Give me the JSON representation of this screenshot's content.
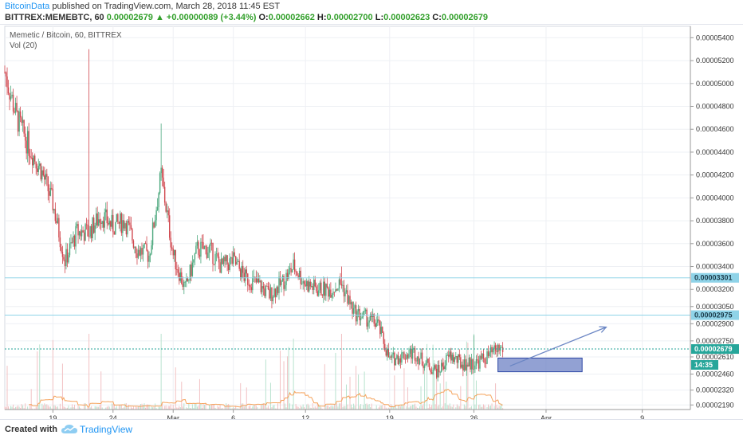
{
  "header": {
    "publisher": "BitcoinData",
    "published_text": "published on TradingView.com, March 28, 2018 11:45 EST",
    "symbol": "BITTREX:MEMEBTC, 60",
    "last": "0.00002679",
    "change": "+0.00000089 (+3.44%)",
    "o_label": "O:",
    "o": "0.00002662",
    "h_label": "H:",
    "h": "0.00002700",
    "l_label": "L:",
    "l": "0.00002623",
    "c_label": "C:",
    "c": "0.00002679"
  },
  "legend": {
    "title": "Memetic / Bitcoin, 60, BITTREX",
    "volume": "Vol (20)"
  },
  "footer": {
    "created_with": "Created with",
    "brand": "TradingView"
  },
  "colors": {
    "up": "#4ca87d",
    "down": "#d0484f",
    "level_line": "#8fd3e8",
    "current_line": "#26a69a",
    "box_fill": "#6d82c4",
    "arrow": "#6b86c4"
  },
  "chart_data": {
    "type": "candlestick",
    "x_labels": [
      "19",
      "24",
      "Mar",
      "6",
      "12",
      "19",
      "26",
      "Apr",
      "9"
    ],
    "x_start_date": "2018-02-15",
    "y_ticks": [
      "0.00005400",
      "0.00005200",
      "0.00005000",
      "0.00004800",
      "0.00004600",
      "0.00004400",
      "0.00004200",
      "0.00004000",
      "0.00003800",
      "0.00003600",
      "0.00003400",
      "0.00003200",
      "0.00003050",
      "0.00002900",
      "0.00002750",
      "0.00002610",
      "0.00002460",
      "0.00002320",
      "0.00002190"
    ],
    "price_tags": [
      {
        "label": "0.00003301",
        "value": 3.301e-05,
        "style": "level"
      },
      {
        "label": "0.00002975",
        "value": 2.975e-05,
        "style": "level"
      },
      {
        "label": "0.00002679",
        "value": 2.679e-05,
        "style": "current"
      },
      {
        "label": "14:35",
        "value": 2.54e-05,
        "style": "countdown"
      }
    ],
    "price_path": [
      [
        "2018-02-15",
        5.1e-05
      ],
      [
        "2018-02-16",
        4.7e-05
      ],
      [
        "2018-02-17",
        4.45e-05
      ],
      [
        "2018-02-18",
        4.25e-05
      ],
      [
        "2018-02-19",
        3.95e-05
      ],
      [
        "2018-02-20",
        3.45e-05
      ],
      [
        "2018-02-21",
        3.7e-05
      ],
      [
        "2018-02-22",
        3.7e-05
      ],
      [
        "2018-02-23",
        3.85e-05
      ],
      [
        "2018-02-24",
        3.75e-05
      ],
      [
        "2018-02-25",
        3.8e-05
      ],
      [
        "2018-02-26",
        3.55e-05
      ],
      [
        "2018-02-27",
        3.5e-05
      ],
      [
        "2018-02-28",
        4.2e-05
      ],
      [
        "2018-03-01",
        3.5e-05
      ],
      [
        "2018-03-02",
        3.2e-05
      ],
      [
        "2018-03-03",
        3.55e-05
      ],
      [
        "2018-03-04",
        3.55e-05
      ],
      [
        "2018-03-05",
        3.4e-05
      ],
      [
        "2018-03-06",
        3.45e-05
      ],
      [
        "2018-03-07",
        3.3e-05
      ],
      [
        "2018-03-08",
        3.25e-05
      ],
      [
        "2018-03-09",
        3.15e-05
      ],
      [
        "2018-03-10",
        3.25e-05
      ],
      [
        "2018-03-11",
        3.4e-05
      ],
      [
        "2018-03-12",
        3.25e-05
      ],
      [
        "2018-03-13",
        3.2e-05
      ],
      [
        "2018-03-14",
        3.2e-05
      ],
      [
        "2018-03-15",
        3.25e-05
      ],
      [
        "2018-03-16",
        3e-05
      ],
      [
        "2018-03-17",
        2.95e-05
      ],
      [
        "2018-03-18",
        2.9e-05
      ],
      [
        "2018-03-19",
        2.58e-05
      ],
      [
        "2018-03-20",
        2.62e-05
      ],
      [
        "2018-03-21",
        2.65e-05
      ],
      [
        "2018-03-22",
        2.55e-05
      ],
      [
        "2018-03-23",
        2.48e-05
      ],
      [
        "2018-03-24",
        2.62e-05
      ],
      [
        "2018-03-25",
        2.55e-05
      ],
      [
        "2018-03-26",
        2.55e-05
      ],
      [
        "2018-03-27",
        2.6e-05
      ],
      [
        "2018-03-28",
        2.68e-05
      ]
    ],
    "spikes": [
      {
        "date": "2018-02-22",
        "high": 5.3e-05
      },
      {
        "date": "2018-02-28",
        "high": 4.65e-05
      },
      {
        "date": "2018-03-15",
        "high": 3.4e-05
      },
      {
        "date": "2018-03-26",
        "high": 2.8e-05
      }
    ],
    "annotations": {
      "box": {
        "x0": "2018-03-28",
        "x1": "2018-04-04",
        "y0": 2.6e-05,
        "y1": 2.48e-05
      },
      "arrow": {
        "x0": "2018-03-29",
        "y0": 2.53e-05,
        "x1": "2018-04-06",
        "y1": 2.87e-05
      }
    },
    "grid": true
  }
}
